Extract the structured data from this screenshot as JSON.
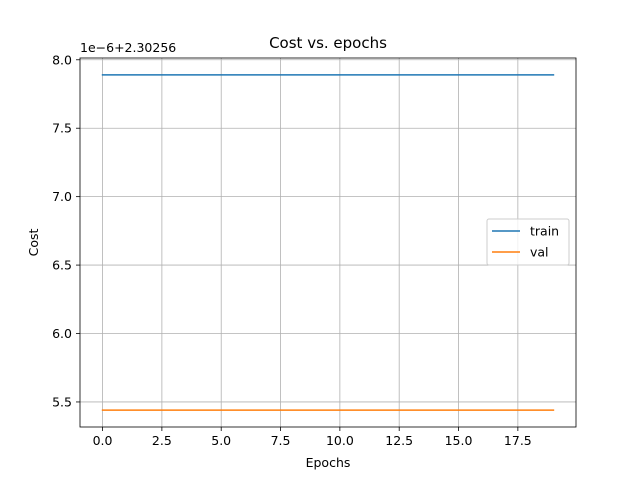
{
  "chart_data": {
    "type": "line",
    "title": "Cost vs. epochs",
    "xlabel": "Epochs",
    "ylabel": "Cost",
    "offset_label": "1e−6+2.30256",
    "x": [
      0,
      1,
      2,
      3,
      4,
      5,
      6,
      7,
      8,
      9,
      10,
      11,
      12,
      13,
      14,
      15,
      16,
      17,
      18,
      19
    ],
    "series": [
      {
        "name": "train",
        "color": "#1f77b4",
        "values": [
          7.89,
          7.89,
          7.89,
          7.89,
          7.89,
          7.89,
          7.89,
          7.89,
          7.89,
          7.89,
          7.89,
          7.89,
          7.89,
          7.89,
          7.89,
          7.89,
          7.89,
          7.89,
          7.89,
          7.89
        ]
      },
      {
        "name": "val",
        "color": "#ff7f0e",
        "values": [
          5.44,
          5.44,
          5.44,
          5.44,
          5.44,
          5.44,
          5.44,
          5.44,
          5.44,
          5.44,
          5.44,
          5.44,
          5.44,
          5.44,
          5.44,
          5.44,
          5.44,
          5.44,
          5.44,
          5.44
        ]
      }
    ],
    "xlim": [
      -0.95,
      19.95
    ],
    "ylim": [
      5.317,
      8.013
    ],
    "xticks": [
      0.0,
      2.5,
      5.0,
      7.5,
      10.0,
      12.5,
      15.0,
      17.5
    ],
    "xtick_labels": [
      "0.0",
      "2.5",
      "5.0",
      "7.5",
      "10.0",
      "12.5",
      "15.0",
      "17.5"
    ],
    "yticks": [
      5.5,
      6.0,
      6.5,
      7.0,
      7.5,
      8.0
    ],
    "ytick_labels": [
      "5.5",
      "6.0",
      "6.5",
      "7.0",
      "7.5",
      "8.0"
    ],
    "grid": true,
    "legend_position": "center-right"
  }
}
